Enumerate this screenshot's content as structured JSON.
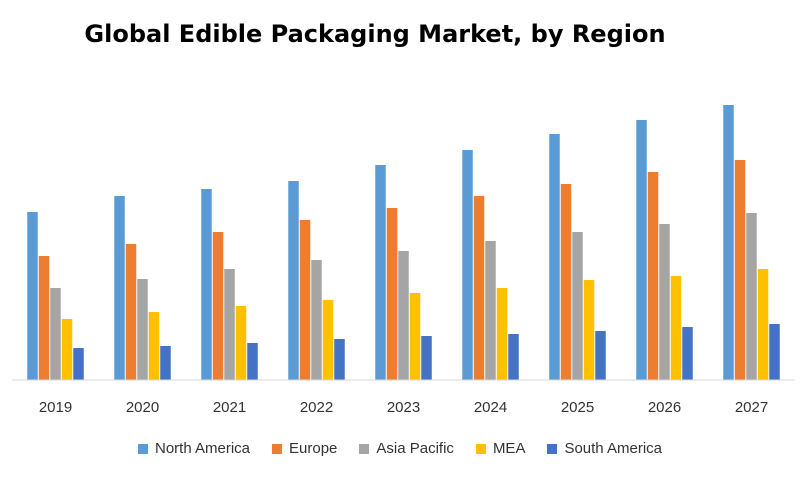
{
  "chart_data": {
    "type": "bar",
    "title": "Global Edible Packaging Market, by Region",
    "xlabel": "",
    "ylabel": "",
    "categories": [
      "2019",
      "2020",
      "2021",
      "2022",
      "2023",
      "2024",
      "2025",
      "2026",
      "2027"
    ],
    "series": [
      {
        "name": "North America",
        "color": "#5B9BD5",
        "values": [
          168,
          184,
          191,
          199,
          215,
          230,
          246,
          260,
          275
        ]
      },
      {
        "name": "Europe",
        "color": "#ED7D31",
        "values": [
          124,
          136,
          148,
          160,
          172,
          184,
          196,
          208,
          220
        ]
      },
      {
        "name": "Asia Pacific",
        "color": "#A5A5A5",
        "values": [
          92,
          101,
          111,
          120,
          129,
          139,
          148,
          156,
          167
        ]
      },
      {
        "name": "MEA",
        "color": "#FFC000",
        "values": [
          61,
          68,
          74,
          80,
          87,
          92,
          100,
          104,
          111
        ]
      },
      {
        "name": "South America",
        "color": "#4472C4",
        "values": [
          32,
          34,
          37,
          41,
          44,
          46,
          49,
          53,
          56
        ]
      }
    ],
    "ylim": [
      0,
      280
    ],
    "grid": false,
    "legend_position": "bottom"
  }
}
